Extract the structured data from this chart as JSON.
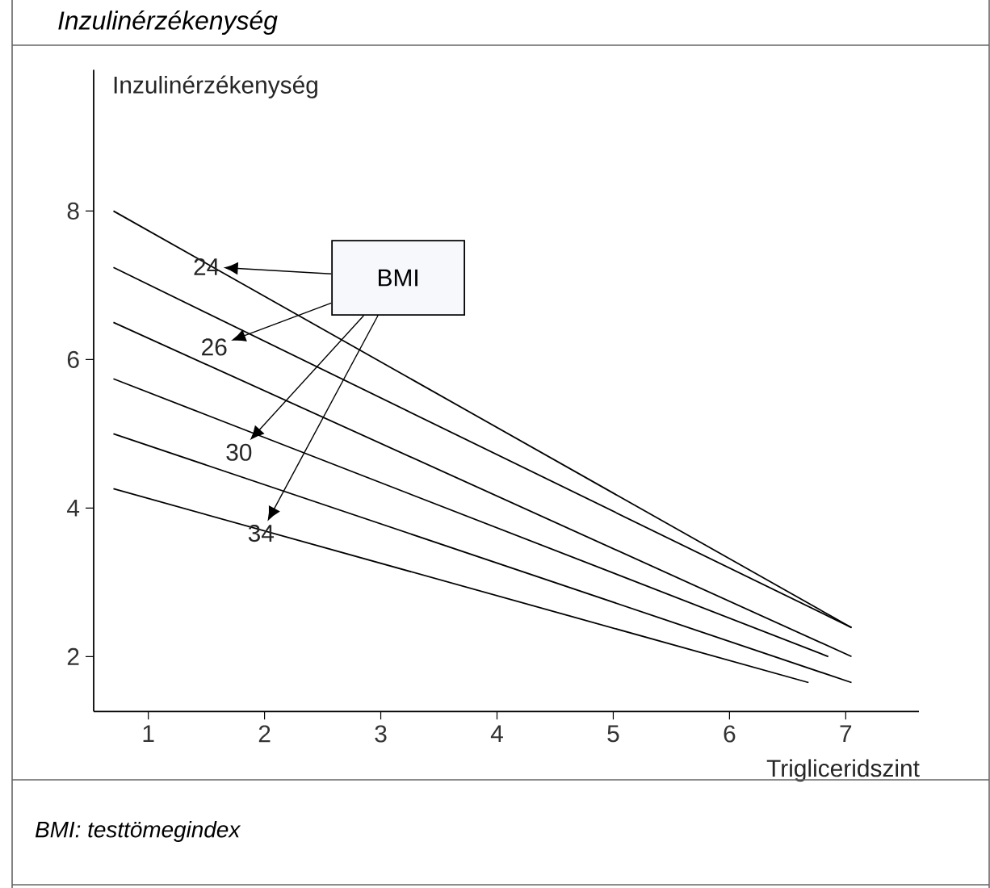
{
  "chart_data": {
    "type": "line",
    "title": "Inzulinérzékenység",
    "xlabel": "Trigliceridszint",
    "ylabel": "Inzulinérzékenység",
    "xlim": [
      0.53,
      7.63
    ],
    "ylim": [
      1.26,
      9.9
    ],
    "xticks": [
      1,
      2,
      3,
      4,
      5,
      6,
      7
    ],
    "yticks": [
      2,
      4,
      6,
      8
    ],
    "series": [
      {
        "color": "#000000",
        "x": [
          0.7,
          7.05
        ],
        "values": [
          8.0,
          2.39
        ]
      },
      {
        "color": "#000000",
        "x": [
          0.7,
          7.05
        ],
        "values": [
          7.24,
          2.39
        ]
      },
      {
        "color": "#000000",
        "x": [
          0.7,
          7.05
        ],
        "values": [
          6.5,
          2.0
        ]
      },
      {
        "color": "#000000",
        "x": [
          0.7,
          6.85
        ],
        "values": [
          5.74,
          2.0
        ]
      },
      {
        "color": "#000000",
        "x": [
          0.7,
          7.05
        ],
        "values": [
          5.0,
          1.65
        ]
      },
      {
        "color": "#000000",
        "x": [
          0.7,
          6.68
        ],
        "values": [
          4.26,
          1.65
        ]
      }
    ],
    "annotations": [
      "BMI",
      {
        "text": "24",
        "x": 1.5,
        "y": 7.25
      },
      "26",
      "30",
      {
        "text": "34",
        "x": 1.97,
        "y": 3.66
      },
      "BMI: testtömegindex"
    ]
  }
}
